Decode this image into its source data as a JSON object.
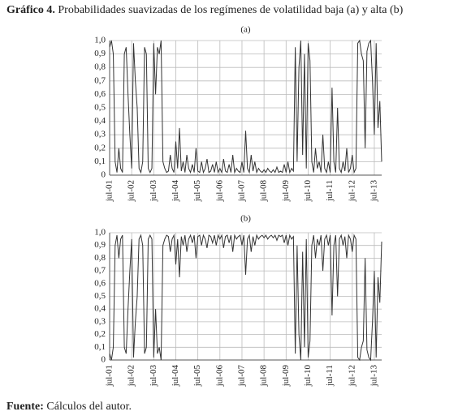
{
  "figure_label": "Gráfico 4.",
  "title": "Probabilidades suavizadas de los regímenes de volatilidad baja (a) y alta (b)",
  "source_label": "Fuente:",
  "source": "Cálculos del autor.",
  "chart_data": [
    {
      "type": "line",
      "subtitle": "(a)",
      "grid": true,
      "categories": [
        "jul-01",
        null,
        null,
        null,
        null,
        null,
        null,
        null,
        null,
        null,
        null,
        null,
        "jul-02",
        null,
        null,
        null,
        null,
        null,
        null,
        null,
        null,
        null,
        null,
        null,
        "jul-03",
        null,
        null,
        null,
        null,
        null,
        null,
        null,
        null,
        null,
        null,
        null,
        "jul-04",
        null,
        null,
        null,
        null,
        null,
        null,
        null,
        null,
        null,
        null,
        null,
        "jul-05",
        null,
        null,
        null,
        null,
        null,
        null,
        null,
        null,
        null,
        null,
        null,
        "jul-06",
        null,
        null,
        null,
        null,
        null,
        null,
        null,
        null,
        null,
        null,
        null,
        "jul-07",
        null,
        null,
        null,
        null,
        null,
        null,
        null,
        null,
        null,
        null,
        null,
        "jul-08",
        null,
        null,
        null,
        null,
        null,
        null,
        null,
        null,
        null,
        null,
        null,
        "jul-09",
        null,
        null,
        null,
        null,
        null,
        null,
        null,
        null,
        null,
        null,
        null,
        "jul-10",
        null,
        null,
        null,
        null,
        null,
        null,
        null,
        null,
        null,
        null,
        null,
        "jul-11",
        null,
        null,
        null,
        null,
        null,
        null,
        null,
        null,
        null,
        null,
        null,
        "jul-12",
        null,
        null,
        null,
        null,
        null,
        null,
        null,
        null,
        null,
        null,
        null,
        "jul-13",
        null,
        null,
        null,
        null
      ],
      "series": [
        {
          "color": "#333333",
          "values": [
            0.95,
            1.0,
            0.9,
            0.1,
            0.02,
            0.2,
            0.05,
            0.02,
            0.9,
            0.95,
            0.6,
            0.3,
            0.05,
            0.98,
            0.7,
            0.5,
            0.05,
            0.02,
            0.1,
            0.95,
            0.9,
            0.05,
            0.02,
            0.05,
            0.98,
            0.6,
            0.95,
            0.9,
            1.0,
            0.1,
            0.05,
            0.02,
            0.03,
            0.15,
            0.05,
            0.02,
            0.25,
            0.05,
            0.35,
            0.03,
            0.1,
            0.02,
            0.15,
            0.05,
            0.02,
            0.08,
            0.02,
            0.2,
            0.03,
            0.02,
            0.1,
            0.02,
            0.05,
            0.12,
            0.02,
            0.03,
            0.08,
            0.02,
            0.1,
            0.02,
            0.05,
            0.02,
            0.12,
            0.03,
            0.02,
            0.08,
            0.02,
            0.15,
            0.02,
            0.05,
            0.03,
            0.02,
            0.1,
            0.02,
            0.33,
            0.05,
            0.02,
            0.15,
            0.03,
            0.1,
            0.02,
            0.05,
            0.03,
            0.02,
            0.04,
            0.02,
            0.05,
            0.03,
            0.02,
            0.04,
            0.02,
            0.06,
            0.02,
            0.03,
            0.02,
            0.08,
            0.02,
            0.1,
            0.02,
            0.05,
            0.03,
            0.95,
            0.1,
            0.8,
            1.0,
            0.15,
            0.9,
            0.05,
            0.98,
            0.85,
            0.1,
            0.02,
            0.2,
            0.05,
            0.1,
            0.02,
            0.3,
            0.05,
            0.02,
            0.1,
            0.02,
            0.65,
            0.1,
            0.02,
            0.5,
            0.05,
            0.02,
            0.1,
            0.03,
            0.2,
            0.02,
            0.05,
            0.15,
            0.02,
            0.05,
            0.98,
            1.0,
            0.9,
            0.85,
            0.2,
            0.92,
            0.98,
            1.0,
            0.7,
            0.3,
            0.98,
            0.35,
            0.55,
            0.1
          ]
        }
      ],
      "ylim": [
        0,
        1
      ],
      "yticks": [
        0,
        {
          "value": 0.1,
          "label": "0,1"
        },
        {
          "value": 0.2,
          "label": "0,2"
        },
        {
          "value": 0.3,
          "label": "0,3"
        },
        {
          "value": 0.4,
          "label": "0,4"
        },
        {
          "value": 0.5,
          "label": "0,5"
        },
        {
          "value": 0.6,
          "label": "0,6"
        },
        {
          "value": 0.7,
          "label": "0,7"
        },
        {
          "value": 0.8,
          "label": "0,8"
        },
        {
          "value": 0.9,
          "label": "0,9"
        },
        {
          "value": 1,
          "label": "1,0"
        }
      ]
    },
    {
      "type": "line",
      "subtitle": "(b)",
      "grid": true,
      "categories": [
        "jul-01",
        null,
        null,
        null,
        null,
        null,
        null,
        null,
        null,
        null,
        null,
        null,
        "jul-02",
        null,
        null,
        null,
        null,
        null,
        null,
        null,
        null,
        null,
        null,
        null,
        "jul-03",
        null,
        null,
        null,
        null,
        null,
        null,
        null,
        null,
        null,
        null,
        null,
        "jul-04",
        null,
        null,
        null,
        null,
        null,
        null,
        null,
        null,
        null,
        null,
        null,
        "jul-05",
        null,
        null,
        null,
        null,
        null,
        null,
        null,
        null,
        null,
        null,
        null,
        "jul-06",
        null,
        null,
        null,
        null,
        null,
        null,
        null,
        null,
        null,
        null,
        null,
        "jul-07",
        null,
        null,
        null,
        null,
        null,
        null,
        null,
        null,
        null,
        null,
        null,
        "jul-08",
        null,
        null,
        null,
        null,
        null,
        null,
        null,
        null,
        null,
        null,
        null,
        "jul-09",
        null,
        null,
        null,
        null,
        null,
        null,
        null,
        null,
        null,
        null,
        null,
        "jul-10",
        null,
        null,
        null,
        null,
        null,
        null,
        null,
        null,
        null,
        null,
        null,
        "jul-11",
        null,
        null,
        null,
        null,
        null,
        null,
        null,
        null,
        null,
        null,
        null,
        "jul-12",
        null,
        null,
        null,
        null,
        null,
        null,
        null,
        null,
        null,
        null,
        null,
        "jul-13",
        null,
        null,
        null,
        null
      ],
      "series": [
        {
          "color": "#333333",
          "values": [
            0.05,
            0.0,
            0.1,
            0.9,
            0.98,
            0.8,
            0.95,
            0.98,
            0.1,
            0.05,
            0.4,
            0.7,
            0.95,
            0.02,
            0.3,
            0.5,
            0.95,
            0.98,
            0.9,
            0.05,
            0.1,
            0.95,
            0.98,
            0.95,
            0.02,
            0.4,
            0.05,
            0.1,
            0.0,
            0.9,
            0.95,
            0.98,
            0.97,
            0.85,
            0.95,
            0.98,
            0.75,
            0.95,
            0.65,
            0.97,
            0.9,
            0.98,
            0.85,
            0.95,
            0.98,
            0.92,
            0.98,
            0.8,
            0.97,
            0.98,
            0.9,
            0.98,
            0.95,
            0.88,
            0.98,
            0.97,
            0.92,
            0.98,
            0.9,
            0.98,
            0.95,
            0.98,
            0.88,
            0.97,
            0.98,
            0.92,
            0.98,
            0.85,
            0.98,
            0.95,
            0.97,
            0.98,
            0.9,
            0.98,
            0.67,
            0.95,
            0.98,
            0.85,
            0.97,
            0.9,
            0.98,
            0.95,
            0.97,
            0.98,
            0.96,
            0.98,
            0.95,
            0.97,
            0.98,
            0.96,
            0.98,
            0.94,
            0.98,
            0.97,
            0.98,
            0.92,
            0.98,
            0.9,
            0.98,
            0.95,
            0.97,
            0.05,
            0.9,
            0.2,
            0.0,
            0.85,
            0.1,
            0.95,
            0.02,
            0.15,
            0.9,
            0.98,
            0.8,
            0.95,
            0.9,
            0.98,
            0.7,
            0.95,
            0.98,
            0.9,
            0.98,
            0.35,
            0.9,
            0.98,
            0.5,
            0.95,
            0.98,
            0.9,
            0.97,
            0.8,
            0.98,
            0.95,
            0.85,
            0.98,
            0.95,
            0.02,
            0.0,
            0.1,
            0.15,
            0.8,
            0.08,
            0.02,
            0.0,
            0.3,
            0.7,
            0.02,
            0.65,
            0.45,
            0.93
          ]
        }
      ],
      "ylim": [
        0,
        1
      ],
      "yticks": [
        0,
        {
          "value": 0.1,
          "label": "0,1"
        },
        {
          "value": 0.2,
          "label": "0,2"
        },
        {
          "value": 0.3,
          "label": "0,3"
        },
        {
          "value": 0.4,
          "label": "0,4"
        },
        {
          "value": 0.5,
          "label": "0,5"
        },
        {
          "value": 0.6,
          "label": "0,6"
        },
        {
          "value": 0.7,
          "label": "0,7"
        },
        {
          "value": 0.8,
          "label": "0,8"
        },
        {
          "value": 0.9,
          "label": "0,9"
        },
        {
          "value": 1,
          "label": "1,0"
        }
      ]
    }
  ]
}
